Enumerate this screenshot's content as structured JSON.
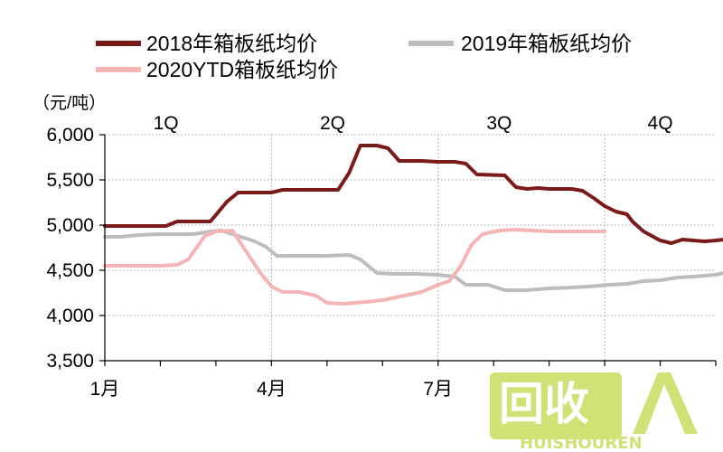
{
  "chart_data": {
    "type": "line",
    "unit_label": "（元/吨）",
    "ylim": [
      3500,
      6000
    ],
    "yticks": [
      "6,000",
      "5,500",
      "5,000",
      "4,500",
      "4,000",
      "3,500"
    ],
    "ytick_values": [
      6000,
      5500,
      5000,
      4500,
      4000,
      3500
    ],
    "xlim": [
      1,
      12
    ],
    "xticks": [
      {
        "label": "1月",
        "x": 1
      },
      {
        "label": "4月",
        "x": 4
      },
      {
        "label": "7月",
        "x": 7
      }
    ],
    "quarters": [
      {
        "label": "1Q",
        "x": 2.1
      },
      {
        "label": "2Q",
        "x": 5.1
      },
      {
        "label": "3Q",
        "x": 8.1
      },
      {
        "label": "4Q",
        "x": 11.0
      }
    ],
    "grid": "horizontal-dotted",
    "legend_position": "top",
    "series": [
      {
        "name": "2018年箱板纸均价",
        "color": "#7b1a1a",
        "points": [
          [
            1.0,
            4990
          ],
          [
            2.1,
            4990
          ],
          [
            2.3,
            5040
          ],
          [
            2.9,
            5040
          ],
          [
            3.2,
            5260
          ],
          [
            3.4,
            5360
          ],
          [
            4.0,
            5360
          ],
          [
            4.2,
            5390
          ],
          [
            5.2,
            5390
          ],
          [
            5.4,
            5580
          ],
          [
            5.6,
            5880
          ],
          [
            5.9,
            5880
          ],
          [
            6.1,
            5850
          ],
          [
            6.3,
            5710
          ],
          [
            6.7,
            5710
          ],
          [
            7.0,
            5700
          ],
          [
            7.3,
            5700
          ],
          [
            7.5,
            5680
          ],
          [
            7.7,
            5560
          ],
          [
            8.2,
            5550
          ],
          [
            8.4,
            5420
          ],
          [
            8.6,
            5400
          ],
          [
            8.8,
            5410
          ],
          [
            9.0,
            5400
          ],
          [
            9.4,
            5400
          ],
          [
            9.6,
            5380
          ],
          [
            9.8,
            5300
          ],
          [
            10.0,
            5210
          ],
          [
            10.2,
            5150
          ],
          [
            10.4,
            5120
          ],
          [
            10.5,
            5040
          ],
          [
            10.7,
            4930
          ],
          [
            11.0,
            4830
          ],
          [
            11.2,
            4800
          ],
          [
            11.4,
            4840
          ],
          [
            11.6,
            4830
          ],
          [
            11.8,
            4820
          ],
          [
            12.0,
            4830
          ],
          [
            12.3,
            4850
          ],
          [
            12.5,
            4870
          ],
          [
            12.7,
            4870
          ]
        ]
      },
      {
        "name": "2019年箱板纸均价",
        "color": "#bdbdbd",
        "points": [
          [
            1.0,
            4870
          ],
          [
            1.3,
            4870
          ],
          [
            1.6,
            4890
          ],
          [
            2.0,
            4900
          ],
          [
            2.3,
            4900
          ],
          [
            2.6,
            4900
          ],
          [
            2.9,
            4930
          ],
          [
            3.1,
            4940
          ],
          [
            3.4,
            4880
          ],
          [
            3.7,
            4820
          ],
          [
            3.9,
            4760
          ],
          [
            4.1,
            4660
          ],
          [
            4.4,
            4660
          ],
          [
            5.0,
            4660
          ],
          [
            5.4,
            4670
          ],
          [
            5.6,
            4620
          ],
          [
            5.9,
            4470
          ],
          [
            6.2,
            4460
          ],
          [
            6.6,
            4460
          ],
          [
            7.0,
            4450
          ],
          [
            7.3,
            4430
          ],
          [
            7.5,
            4340
          ],
          [
            7.9,
            4340
          ],
          [
            8.2,
            4280
          ],
          [
            8.6,
            4280
          ],
          [
            9.0,
            4300
          ],
          [
            9.4,
            4310
          ],
          [
            9.7,
            4320
          ],
          [
            10.1,
            4340
          ],
          [
            10.4,
            4350
          ],
          [
            10.7,
            4380
          ],
          [
            11.0,
            4390
          ],
          [
            11.3,
            4420
          ],
          [
            11.6,
            4430
          ],
          [
            12.0,
            4450
          ],
          [
            12.2,
            4480
          ],
          [
            12.4,
            4540
          ],
          [
            12.7,
            4540
          ]
        ]
      },
      {
        "name": "2020YTD箱板纸均价",
        "color": "#f5b5b5",
        "points": [
          [
            1.0,
            4550
          ],
          [
            1.4,
            4550
          ],
          [
            2.0,
            4550
          ],
          [
            2.3,
            4560
          ],
          [
            2.5,
            4620
          ],
          [
            2.8,
            4880
          ],
          [
            3.0,
            4930
          ],
          [
            3.3,
            4940
          ],
          [
            3.5,
            4750
          ],
          [
            3.8,
            4470
          ],
          [
            4.0,
            4320
          ],
          [
            4.2,
            4260
          ],
          [
            4.5,
            4260
          ],
          [
            4.8,
            4220
          ],
          [
            5.0,
            4140
          ],
          [
            5.3,
            4130
          ],
          [
            5.7,
            4150
          ],
          [
            6.0,
            4170
          ],
          [
            6.4,
            4220
          ],
          [
            6.7,
            4260
          ],
          [
            7.0,
            4340
          ],
          [
            7.2,
            4380
          ],
          [
            7.4,
            4540
          ],
          [
            7.6,
            4780
          ],
          [
            7.8,
            4900
          ],
          [
            8.1,
            4940
          ],
          [
            8.4,
            4950
          ],
          [
            8.7,
            4940
          ],
          [
            9.0,
            4930
          ],
          [
            9.5,
            4930
          ],
          [
            10.0,
            4930
          ]
        ]
      }
    ]
  },
  "watermark": {
    "big_text": "回收",
    "small_text": "HUISHOUREN"
  }
}
